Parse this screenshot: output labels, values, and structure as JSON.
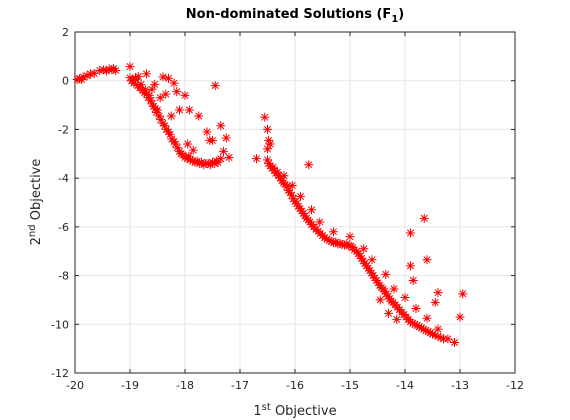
{
  "chart_data": {
    "type": "scatter",
    "title": {
      "main": "Non-dominated Solutions (F",
      "sub": "1",
      "close": ")"
    },
    "xlabel": {
      "pre": "1",
      "sup": "st",
      "post": " Objective"
    },
    "ylabel": {
      "pre": "2",
      "sup": "nd",
      "post": " Objective"
    },
    "xlim": [
      -20,
      -12
    ],
    "ylim": [
      -12,
      2
    ],
    "xticks": [
      -20,
      -19,
      -18,
      -17,
      -16,
      -15,
      -14,
      -13,
      -12
    ],
    "yticks": [
      -12,
      -10,
      -8,
      -6,
      -4,
      -2,
      0,
      2
    ],
    "grid": true,
    "marker": "asterisk",
    "color": "#ff0000",
    "series": [
      {
        "points": [
          [
            -19.96,
            0.05
          ],
          [
            -19.92,
            0.08
          ],
          [
            -19.88,
            0.05
          ],
          [
            -19.85,
            0.15
          ],
          [
            -19.78,
            0.2
          ],
          [
            -19.72,
            0.28
          ],
          [
            -19.65,
            0.3
          ],
          [
            -19.55,
            0.42
          ],
          [
            -19.48,
            0.45
          ],
          [
            -19.43,
            0.4
          ],
          [
            -19.38,
            0.48
          ],
          [
            -19.33,
            0.45
          ],
          [
            -19.3,
            0.5
          ],
          [
            -19.26,
            0.42
          ],
          [
            -19.0,
            0.58
          ],
          [
            -19.0,
            0.12
          ],
          [
            -18.97,
            0.0
          ],
          [
            -18.93,
            -0.1
          ],
          [
            -18.9,
            0.05
          ],
          [
            -18.86,
            -0.2
          ],
          [
            -18.82,
            -0.3
          ],
          [
            -18.8,
            -0.15
          ],
          [
            -18.77,
            -0.4
          ],
          [
            -18.74,
            -0.5
          ],
          [
            -18.72,
            -0.38
          ],
          [
            -18.7,
            -0.55
          ],
          [
            -18.67,
            -0.7
          ],
          [
            -18.65,
            -0.6
          ],
          [
            -18.62,
            -0.8
          ],
          [
            -18.6,
            -0.95
          ],
          [
            -18.57,
            -1.05
          ],
          [
            -18.54,
            -1.15
          ],
          [
            -18.52,
            -1.3
          ],
          [
            -18.5,
            -1.2
          ],
          [
            -18.47,
            -1.45
          ],
          [
            -18.44,
            -1.6
          ],
          [
            -18.4,
            -1.75
          ],
          [
            -18.37,
            -1.85
          ],
          [
            -18.34,
            -2.0
          ],
          [
            -18.3,
            -2.1
          ],
          [
            -18.27,
            -2.2
          ],
          [
            -18.24,
            -2.4
          ],
          [
            -18.2,
            -2.5
          ],
          [
            -18.17,
            -2.6
          ],
          [
            -18.14,
            -2.75
          ],
          [
            -18.1,
            -2.9
          ],
          [
            -18.07,
            -3.0
          ],
          [
            -18.04,
            -3.05
          ],
          [
            -18.0,
            -3.15
          ],
          [
            -17.96,
            -3.2
          ],
          [
            -17.93,
            -3.1
          ],
          [
            -17.9,
            -3.25
          ],
          [
            -17.86,
            -3.3
          ],
          [
            -17.82,
            -3.35
          ],
          [
            -17.78,
            -3.3
          ],
          [
            -17.74,
            -3.4
          ],
          [
            -17.7,
            -3.35
          ],
          [
            -17.66,
            -3.45
          ],
          [
            -17.62,
            -3.4
          ],
          [
            -17.58,
            -3.4
          ],
          [
            -17.54,
            -3.45
          ],
          [
            -17.5,
            -3.35
          ],
          [
            -17.46,
            -3.4
          ],
          [
            -17.43,
            -3.3
          ],
          [
            -17.4,
            -3.35
          ],
          [
            -17.35,
            -3.2
          ],
          [
            -17.3,
            -2.9
          ],
          [
            -18.9,
            0.1
          ],
          [
            -18.85,
            0.18
          ],
          [
            -18.7,
            0.28
          ],
          [
            -18.55,
            -0.15
          ],
          [
            -18.4,
            0.15
          ],
          [
            -18.3,
            0.1
          ],
          [
            -18.2,
            -0.1
          ],
          [
            -18.15,
            -0.45
          ],
          [
            -18.0,
            -0.6
          ],
          [
            -18.35,
            -0.55
          ],
          [
            -18.6,
            -0.35
          ],
          [
            -18.1,
            -1.2
          ],
          [
            -17.92,
            -1.2
          ],
          [
            -17.75,
            -1.45
          ],
          [
            -17.6,
            -2.1
          ],
          [
            -17.55,
            -2.45
          ],
          [
            -17.5,
            -2.45
          ],
          [
            -17.45,
            -0.2
          ],
          [
            -17.35,
            -1.85
          ],
          [
            -17.25,
            -2.35
          ],
          [
            -17.2,
            -3.15
          ],
          [
            -18.45,
            -0.7
          ],
          [
            -18.25,
            -1.45
          ],
          [
            -17.95,
            -2.6
          ],
          [
            -17.85,
            -2.85
          ],
          [
            -16.5,
            -3.25
          ],
          [
            -16.48,
            -3.4
          ],
          [
            -16.45,
            -3.5
          ],
          [
            -16.42,
            -3.6
          ],
          [
            -16.4,
            -3.55
          ],
          [
            -16.37,
            -3.7
          ],
          [
            -16.35,
            -3.8
          ],
          [
            -16.32,
            -3.75
          ],
          [
            -16.3,
            -3.9
          ],
          [
            -16.27,
            -4.0
          ],
          [
            -16.24,
            -4.1
          ],
          [
            -16.21,
            -4.2
          ],
          [
            -16.18,
            -4.25
          ],
          [
            -16.15,
            -4.35
          ],
          [
            -16.12,
            -4.5
          ],
          [
            -16.09,
            -4.6
          ],
          [
            -16.06,
            -4.7
          ],
          [
            -16.03,
            -4.85
          ],
          [
            -16.0,
            -4.95
          ],
          [
            -15.97,
            -5.05
          ],
          [
            -15.94,
            -5.15
          ],
          [
            -15.91,
            -5.25
          ],
          [
            -15.88,
            -5.35
          ],
          [
            -15.85,
            -5.45
          ],
          [
            -15.82,
            -5.55
          ],
          [
            -15.79,
            -5.65
          ],
          [
            -15.76,
            -5.72
          ],
          [
            -15.73,
            -5.8
          ],
          [
            -15.7,
            -5.9
          ],
          [
            -15.66,
            -6.0
          ],
          [
            -15.62,
            -6.1
          ],
          [
            -15.58,
            -6.18
          ],
          [
            -15.54,
            -6.27
          ],
          [
            -15.5,
            -6.35
          ],
          [
            -15.46,
            -6.45
          ],
          [
            -15.42,
            -6.5
          ],
          [
            -15.38,
            -6.55
          ],
          [
            -15.34,
            -6.6
          ],
          [
            -15.3,
            -6.65
          ],
          [
            -15.26,
            -6.62
          ],
          [
            -15.22,
            -6.7
          ],
          [
            -15.18,
            -6.68
          ],
          [
            -15.14,
            -6.72
          ],
          [
            -15.1,
            -6.75
          ],
          [
            -15.06,
            -6.7
          ],
          [
            -15.02,
            -6.78
          ],
          [
            -14.98,
            -6.8
          ],
          [
            -14.95,
            -6.85
          ],
          [
            -14.92,
            -6.95
          ],
          [
            -14.88,
            -7.0
          ],
          [
            -14.85,
            -7.1
          ],
          [
            -14.82,
            -7.2
          ],
          [
            -14.79,
            -7.3
          ],
          [
            -14.76,
            -7.4
          ],
          [
            -14.73,
            -7.5
          ],
          [
            -14.7,
            -7.6
          ],
          [
            -14.67,
            -7.7
          ],
          [
            -14.64,
            -7.8
          ],
          [
            -14.61,
            -7.9
          ],
          [
            -14.58,
            -8.0
          ],
          [
            -14.55,
            -8.1
          ],
          [
            -14.52,
            -8.2
          ],
          [
            -14.49,
            -8.3
          ],
          [
            -14.46,
            -8.4
          ],
          [
            -14.43,
            -8.5
          ],
          [
            -14.4,
            -8.55
          ],
          [
            -14.37,
            -8.65
          ],
          [
            -14.34,
            -8.75
          ],
          [
            -14.31,
            -8.85
          ],
          [
            -14.28,
            -8.95
          ],
          [
            -14.25,
            -9.05
          ],
          [
            -14.22,
            -9.1
          ],
          [
            -14.18,
            -9.2
          ],
          [
            -14.14,
            -9.3
          ],
          [
            -14.1,
            -9.4
          ],
          [
            -14.06,
            -9.5
          ],
          [
            -14.02,
            -9.6
          ],
          [
            -13.98,
            -9.7
          ],
          [
            -13.94,
            -9.8
          ],
          [
            -13.9,
            -9.9
          ],
          [
            -13.86,
            -9.95
          ],
          [
            -13.82,
            -10.0
          ],
          [
            -13.78,
            -10.05
          ],
          [
            -13.74,
            -10.1
          ],
          [
            -13.7,
            -10.15
          ],
          [
            -13.66,
            -10.2
          ],
          [
            -13.62,
            -10.25
          ],
          [
            -13.58,
            -10.3
          ],
          [
            -13.54,
            -10.35
          ],
          [
            -13.5,
            -10.4
          ],
          [
            -13.45,
            -10.45
          ],
          [
            -13.4,
            -10.5
          ],
          [
            -13.35,
            -10.55
          ],
          [
            -13.3,
            -10.6
          ],
          [
            -13.22,
            -10.6
          ],
          [
            -13.1,
            -10.75
          ],
          [
            -16.55,
            -1.5
          ],
          [
            -16.5,
            -2.0
          ],
          [
            -16.48,
            -2.45
          ],
          [
            -16.5,
            -2.8
          ],
          [
            -16.45,
            -2.6
          ],
          [
            -16.7,
            -3.2
          ],
          [
            -15.75,
            -3.45
          ],
          [
            -16.2,
            -3.9
          ],
          [
            -16.05,
            -4.3
          ],
          [
            -15.9,
            -4.75
          ],
          [
            -15.7,
            -5.3
          ],
          [
            -15.55,
            -5.8
          ],
          [
            -15.3,
            -6.2
          ],
          [
            -15.0,
            -6.4
          ],
          [
            -14.75,
            -6.9
          ],
          [
            -14.6,
            -7.35
          ],
          [
            -14.35,
            -7.95
          ],
          [
            -14.2,
            -8.55
          ],
          [
            -14.0,
            -8.9
          ],
          [
            -13.8,
            -9.35
          ],
          [
            -13.6,
            -9.75
          ],
          [
            -13.4,
            -10.2
          ],
          [
            -14.15,
            -9.8
          ],
          [
            -14.3,
            -9.55
          ],
          [
            -14.45,
            -9.0
          ],
          [
            -13.9,
            -6.25
          ],
          [
            -13.65,
            -5.65
          ],
          [
            -13.6,
            -7.35
          ],
          [
            -13.9,
            -7.6
          ],
          [
            -13.85,
            -8.2
          ],
          [
            -13.4,
            -8.7
          ],
          [
            -13.45,
            -9.1
          ],
          [
            -12.95,
            -8.75
          ],
          [
            -13.0,
            -9.7
          ]
        ]
      }
    ]
  }
}
